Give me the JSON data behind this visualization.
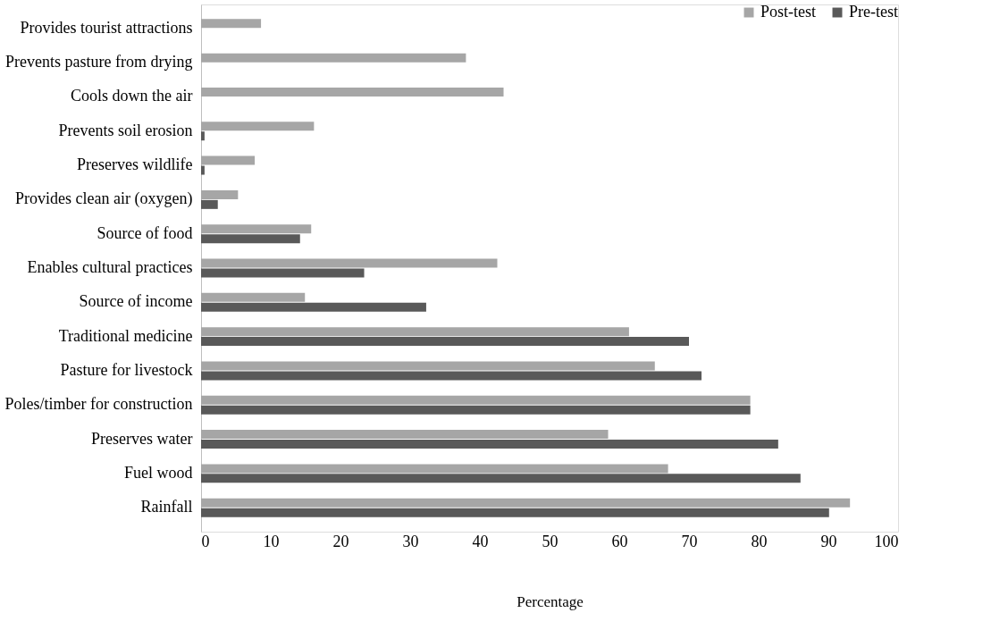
{
  "chart_data": {
    "type": "bar",
    "orientation": "horizontal",
    "xlabel": "Percentage",
    "legend": "top right",
    "grid": false,
    "categories": [
      "Provides tourist attractions",
      "Prevents pasture from drying",
      "Cools down the air",
      "Prevents soil erosion",
      "Preserves wildlife",
      "Provides clean air (oxygen)",
      "Source of food",
      "Enables cultural practices",
      "Source of income",
      "Traditional medicine",
      "Pasture for livestock",
      "Poles/timber for construction",
      "Preserves water",
      "Fuel wood",
      "Rainfall"
    ],
    "series": [
      {
        "name": "Post-test",
        "color": "#a6a6a6",
        "values": [
          8.6,
          38.0,
          43.4,
          16.2,
          7.7,
          5.3,
          15.8,
          42.5,
          14.9,
          61.4,
          65.1,
          78.8,
          58.4,
          67.0,
          93.1
        ]
      },
      {
        "name": "Pre-test",
        "color": "#595959",
        "values": [
          null,
          null,
          null,
          0.5,
          0.5,
          2.4,
          14.2,
          23.4,
          32.3,
          70.0,
          71.8,
          78.8,
          82.8,
          86.0,
          90.1
        ]
      }
    ],
    "xlim": [
      0,
      100
    ],
    "xticks": [
      0,
      10,
      20,
      30,
      40,
      50,
      60,
      70,
      80,
      90,
      100
    ]
  }
}
